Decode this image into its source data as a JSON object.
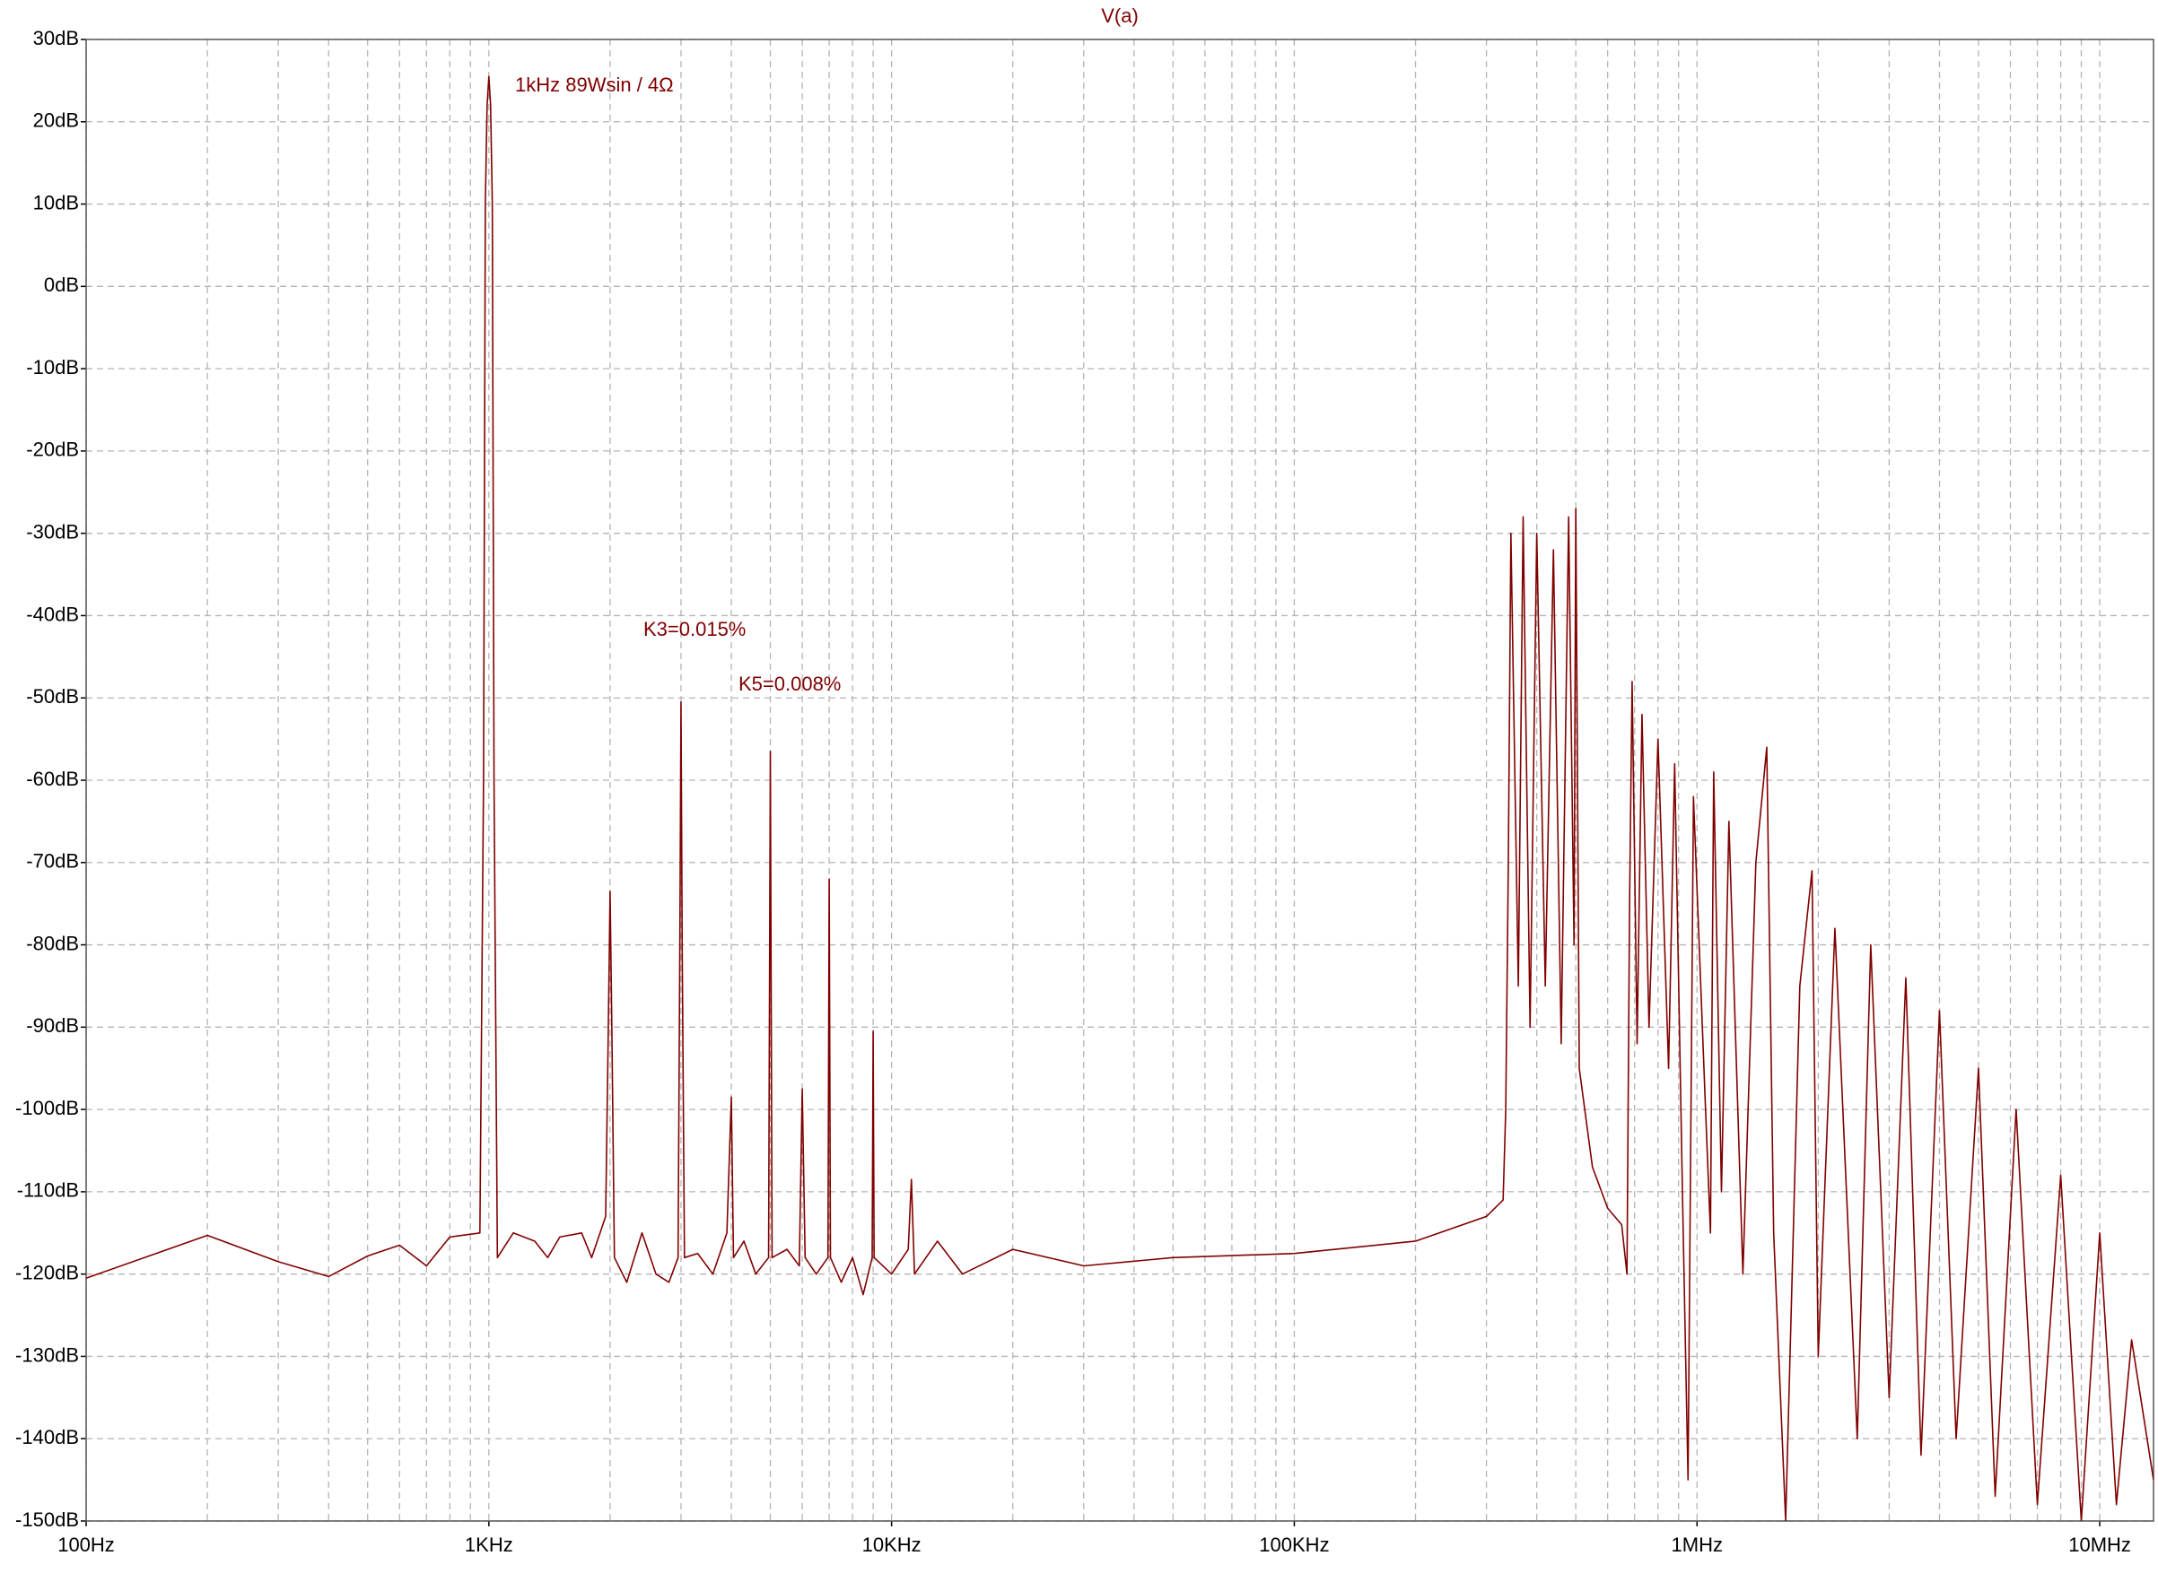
{
  "chart_data": {
    "type": "line",
    "title": "V(a)",
    "annotations": [
      "1kHz  89Wsin / 4Ω",
      "K3=0.015%",
      "K5=0.008%"
    ],
    "x_scale": "log",
    "grid": true,
    "minor_grid": true,
    "color": "#800000",
    "xlim": [
      100,
      13600000
    ],
    "ylim": [
      -150,
      30
    ],
    "xticks": [
      {
        "value": 100,
        "label": "100Hz"
      },
      {
        "value": 1000,
        "label": "1KHz"
      },
      {
        "value": 10000,
        "label": "10KHz"
      },
      {
        "value": 100000,
        "label": "100KHz"
      },
      {
        "value": 1000000,
        "label": "1MHz"
      },
      {
        "value": 10000000,
        "label": "10MHz"
      }
    ],
    "yticks": [
      {
        "value": 30,
        "label": "30dB"
      },
      {
        "value": 20,
        "label": "20dB"
      },
      {
        "value": 10,
        "label": "10dB"
      },
      {
        "value": 0,
        "label": "0dB"
      },
      {
        "value": -10,
        "label": "-10dB"
      },
      {
        "value": -20,
        "label": "-20dB"
      },
      {
        "value": -30,
        "label": "-30dB"
      },
      {
        "value": -40,
        "label": "-40dB"
      },
      {
        "value": -50,
        "label": "-50dB"
      },
      {
        "value": -60,
        "label": "-60dB"
      },
      {
        "value": -70,
        "label": "-70dB"
      },
      {
        "value": -80,
        "label": "-80dB"
      },
      {
        "value": -90,
        "label": "-90dB"
      },
      {
        "value": -100,
        "label": "-100dB"
      },
      {
        "value": -110,
        "label": "-110dB"
      },
      {
        "value": -120,
        "label": "-120dB"
      },
      {
        "value": -130,
        "label": "-130dB"
      },
      {
        "value": -140,
        "label": "-140dB"
      },
      {
        "value": -150,
        "label": "-150dB"
      }
    ],
    "x": [
      100,
      200,
      300,
      400,
      500,
      600,
      700,
      800,
      950,
      970,
      980,
      990,
      1000,
      1010,
      1020,
      1030,
      1050,
      1150,
      1300,
      1400,
      1500,
      1700,
      1800,
      1950,
      1980,
      2000,
      2020,
      2050,
      2200,
      2400,
      2600,
      2800,
      2950,
      2980,
      3000,
      3020,
      3060,
      3300,
      3600,
      3900,
      4000,
      4050,
      4300,
      4600,
      4950,
      5000,
      5050,
      5500,
      5900,
      6000,
      6100,
      6500,
      6950,
      7000,
      7050,
      7500,
      8000,
      8500,
      8950,
      9000,
      9050,
      10000,
      11000,
      11200,
      11400,
      13000,
      15000,
      20000,
      30000,
      50000,
      100000,
      200000,
      300000,
      330000,
      335000,
      340000,
      345000,
      360000,
      370000,
      385000,
      400000,
      420000,
      440000,
      460000,
      480000,
      495000,
      500000,
      505000,
      510000,
      550000,
      600000,
      650000,
      670000,
      680000,
      690000,
      710000,
      730000,
      760000,
      800000,
      850000,
      880000,
      920000,
      950000,
      980000,
      1050000,
      1080000,
      1100000,
      1150000,
      1200000,
      1300000,
      1400000,
      1490000,
      1550000,
      1660000,
      1800000,
      1930000,
      2000000,
      2200000,
      2500000,
      2700000,
      3000000,
      3300000,
      3600000,
      4000000,
      4400000,
      5000000,
      5500000,
      6200000,
      7000000,
      8000000,
      9000000,
      10000000,
      11000000,
      12000000,
      13600000
    ],
    "values": [
      -120.5,
      -115.3,
      -118.5,
      -120.3,
      -117.8,
      -116.5,
      -119,
      -115.5,
      -115,
      -60,
      10,
      22,
      25.5,
      22,
      10,
      -60,
      -118,
      -115,
      -116,
      -118,
      -115.5,
      -115,
      -118,
      -113,
      -90,
      -73.5,
      -90,
      -118,
      -121,
      -115,
      -120,
      -121,
      -118,
      -80,
      -50.5,
      -80,
      -118,
      -117.5,
      -120,
      -115,
      -98.5,
      -118,
      -116,
      -120,
      -118,
      -56.5,
      -118,
      -117,
      -119,
      -97.5,
      -118,
      -120,
      -118,
      -72,
      -118,
      -121,
      -118,
      -122.5,
      -118,
      -90.5,
      -118,
      -120,
      -117,
      -108.5,
      -120,
      -116,
      -120,
      -117,
      -119,
      -118,
      -117.5,
      -116,
      -113,
      -111,
      -100,
      -70,
      -30,
      -85,
      -28,
      -90,
      -30,
      -85,
      -32,
      -92,
      -28,
      -80,
      -27,
      -60,
      -95,
      -107,
      -112,
      -114,
      -120,
      -75,
      -48,
      -92,
      -52,
      -90,
      -55,
      -95,
      -58,
      -110,
      -145,
      -62,
      -100,
      -115,
      -59,
      -110,
      -65,
      -120,
      -70,
      -56,
      -115,
      -150,
      -85,
      -71,
      -130,
      -78,
      -140,
      -80,
      -135,
      -84,
      -142,
      -88,
      -140,
      -95,
      -147,
      -100,
      -148,
      -108,
      -150,
      -115,
      -148,
      -128,
      -145
    ]
  }
}
